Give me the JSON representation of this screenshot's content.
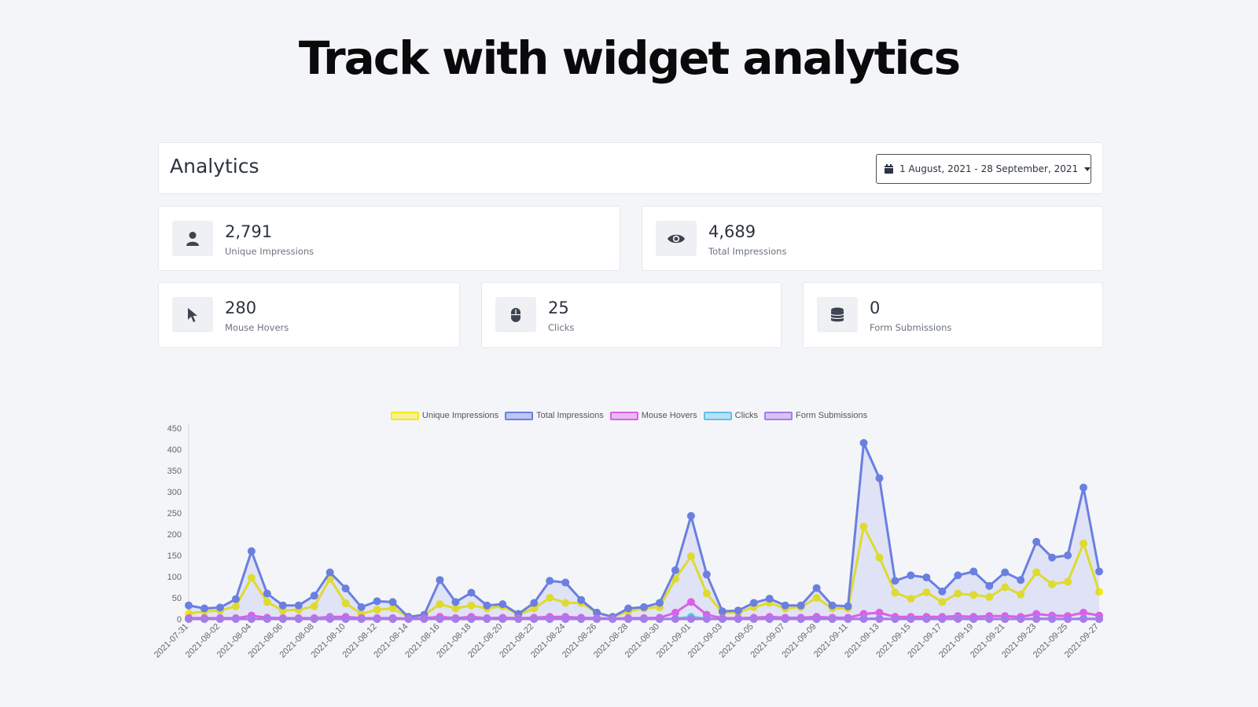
{
  "headline": "Track with widget analytics",
  "header": {
    "title": "Analytics",
    "date_range": "1 August, 2021 - 28 September, 2021"
  },
  "stats": [
    {
      "value": "2,791",
      "label": "Unique Impressions",
      "icon": "user-icon"
    },
    {
      "value": "4,689",
      "label": "Total Impressions",
      "icon": "eye-icon"
    },
    {
      "value": "280",
      "label": "Mouse Hovers",
      "icon": "cursor-icon"
    },
    {
      "value": "25",
      "label": "Clicks",
      "icon": "mouse-icon"
    },
    {
      "value": "0",
      "label": "Form Submissions",
      "icon": "database-icon"
    }
  ],
  "colors": {
    "unique": "#f3ea12",
    "total": "#6a7fe0",
    "hovers": "#dc5fe6",
    "clicks": "#5fc1ea",
    "forms": "#a77be8"
  },
  "chart_data": {
    "type": "line",
    "x": [
      "2021-07-31",
      "2021-08-01",
      "2021-08-02",
      "2021-08-03",
      "2021-08-04",
      "2021-08-05",
      "2021-08-06",
      "2021-08-07",
      "2021-08-08",
      "2021-08-09",
      "2021-08-10",
      "2021-08-11",
      "2021-08-12",
      "2021-08-13",
      "2021-08-14",
      "2021-08-15",
      "2021-08-16",
      "2021-08-17",
      "2021-08-18",
      "2021-08-19",
      "2021-08-20",
      "2021-08-21",
      "2021-08-22",
      "2021-08-23",
      "2021-08-24",
      "2021-08-25",
      "2021-08-26",
      "2021-08-27",
      "2021-08-28",
      "2021-08-29",
      "2021-08-30",
      "2021-08-31",
      "2021-09-01",
      "2021-09-02",
      "2021-09-03",
      "2021-09-04",
      "2021-09-05",
      "2021-09-06",
      "2021-09-07",
      "2021-09-08",
      "2021-09-09",
      "2021-09-10",
      "2021-09-11",
      "2021-09-12",
      "2021-09-13",
      "2021-09-14",
      "2021-09-15",
      "2021-09-16",
      "2021-09-17",
      "2021-09-18",
      "2021-09-19",
      "2021-09-20",
      "2021-09-21",
      "2021-09-22",
      "2021-09-23",
      "2021-09-24",
      "2021-09-25",
      "2021-09-26",
      "2021-09-27"
    ],
    "tick_labels": [
      "2021-07-31",
      "2021-08-02",
      "2021-08-04",
      "2021-08-06",
      "2021-08-08",
      "2021-08-10",
      "2021-08-12",
      "2021-08-14",
      "2021-08-16",
      "2021-08-18",
      "2021-08-20",
      "2021-08-22",
      "2021-08-24",
      "2021-08-26",
      "2021-08-28",
      "2021-08-30",
      "2021-09-01",
      "2021-09-03",
      "2021-09-05",
      "2021-09-07",
      "2021-09-09",
      "2021-09-11",
      "2021-09-13",
      "2021-09-15",
      "2021-09-17",
      "2021-09-19",
      "2021-09-21",
      "2021-09-23",
      "2021-09-25",
      "2021-09-27"
    ],
    "yticks": [
      0,
      50,
      100,
      150,
      200,
      250,
      300,
      350,
      400,
      450
    ],
    "ylim": [
      0,
      450
    ],
    "legend_position": "top-center",
    "series": [
      {
        "name": "Unique Impressions",
        "color_key": "unique",
        "fill": false,
        "values": [
          13,
          18,
          20,
          30,
          97,
          40,
          20,
          22,
          30,
          95,
          37,
          12,
          22,
          25,
          5,
          10,
          35,
          25,
          32,
          25,
          30,
          10,
          25,
          50,
          38,
          38,
          15,
          5,
          18,
          25,
          28,
          95,
          148,
          60,
          15,
          15,
          28,
          38,
          25,
          28,
          50,
          25,
          25,
          218,
          145,
          62,
          48,
          63,
          40,
          60,
          57,
          52,
          75,
          58,
          110,
          82,
          88,
          178,
          64
        ]
      },
      {
        "name": "Total Impressions",
        "color_key": "total",
        "fill": true,
        "values": [
          32,
          25,
          27,
          47,
          160,
          60,
          32,
          32,
          55,
          110,
          72,
          28,
          42,
          40,
          5,
          10,
          92,
          40,
          62,
          32,
          35,
          12,
          38,
          90,
          86,
          45,
          15,
          5,
          25,
          28,
          38,
          115,
          243,
          105,
          18,
          20,
          38,
          48,
          32,
          32,
          73,
          32,
          30,
          415,
          332,
          90,
          103,
          98,
          65,
          103,
          112,
          78,
          110,
          92,
          182,
          145,
          150,
          310,
          112
        ]
      },
      {
        "name": "Mouse Hovers",
        "color_key": "hovers",
        "fill": false,
        "values": [
          2,
          2,
          2,
          2,
          8,
          3,
          2,
          2,
          2,
          5,
          5,
          2,
          2,
          2,
          1,
          2,
          5,
          2,
          5,
          2,
          3,
          2,
          3,
          5,
          5,
          3,
          2,
          1,
          2,
          2,
          3,
          15,
          40,
          10,
          2,
          2,
          3,
          5,
          3,
          3,
          5,
          3,
          3,
          12,
          15,
          5,
          5,
          5,
          5,
          7,
          5,
          7,
          7,
          5,
          12,
          8,
          7,
          15,
          8
        ]
      },
      {
        "name": "Clicks",
        "color_key": "clicks",
        "fill": false,
        "values": [
          0,
          0,
          0,
          0,
          0,
          0,
          0,
          0,
          0,
          1,
          0,
          0,
          0,
          0,
          0,
          0,
          0,
          0,
          0,
          0,
          0,
          0,
          0,
          0,
          0,
          0,
          0,
          0,
          0,
          0,
          0,
          1,
          5,
          1,
          0,
          0,
          0,
          0,
          0,
          0,
          0,
          0,
          0,
          1,
          1,
          0,
          0,
          0,
          0,
          1,
          0,
          0,
          0,
          0,
          1,
          1,
          0,
          1,
          0
        ]
      },
      {
        "name": "Form Submissions",
        "color_key": "forms",
        "fill": false,
        "values": [
          0,
          0,
          0,
          0,
          0,
          0,
          0,
          0,
          0,
          0,
          0,
          0,
          0,
          0,
          0,
          0,
          0,
          0,
          0,
          0,
          0,
          0,
          0,
          0,
          0,
          0,
          0,
          0,
          0,
          0,
          0,
          0,
          0,
          0,
          0,
          0,
          0,
          0,
          0,
          0,
          0,
          0,
          0,
          0,
          0,
          0,
          0,
          0,
          0,
          0,
          0,
          0,
          0,
          0,
          0,
          0,
          0,
          0,
          0
        ]
      }
    ]
  }
}
